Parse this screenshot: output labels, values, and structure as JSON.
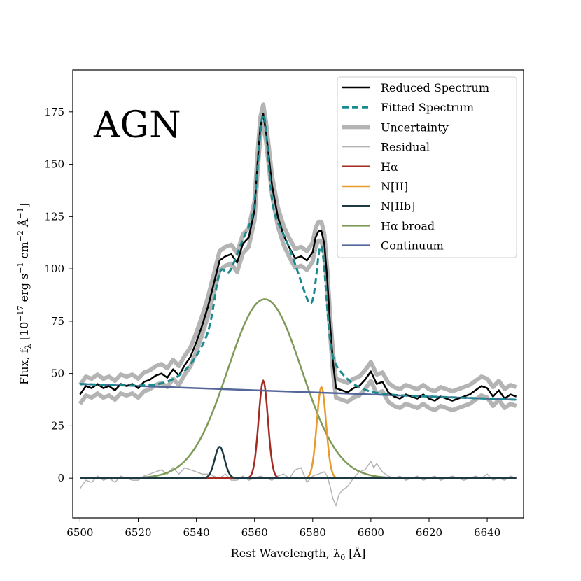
{
  "chart_data": {
    "type": "line",
    "annotation": "AGN",
    "xlabel": "Rest Wavelength, λ",
    "xlabel_sub": "0",
    "xlabel_unit": " [Å]",
    "ylabel": "Flux, f",
    "ylabel_sub": "λ",
    "ylabel_a": " [10",
    "ylabel_exp1": "−17",
    "ylabel_b": " erg s",
    "ylabel_exp2": "−1",
    "ylabel_c": " cm",
    "ylabel_exp3": "−2",
    "ylabel_d": " Å",
    "ylabel_exp4": "−1",
    "ylabel_e": "]",
    "xlim": [
      6497.5,
      6652.5
    ],
    "ylim": [
      -19,
      195
    ],
    "xticks": [
      6500,
      6520,
      6540,
      6560,
      6580,
      6600,
      6620,
      6640
    ],
    "yticks": [
      0,
      25,
      50,
      75,
      100,
      125,
      150,
      175
    ],
    "legend": [
      {
        "label": "Reduced Spectrum",
        "color": "#000000",
        "style": "solid",
        "width": 2.5
      },
      {
        "label": "Fitted Spectrum",
        "color": "#1b8a8e",
        "style": "dashed",
        "width": 3
      },
      {
        "label": "Uncertainty",
        "color": "#b4b4b4",
        "style": "solid",
        "width": 6
      },
      {
        "label": "Residual",
        "color": "#b4b4b4",
        "style": "solid",
        "width": 1.5
      },
      {
        "label": "Hα",
        "color": "#a52a22",
        "style": "solid",
        "width": 2.5
      },
      {
        "label": "N[II]",
        "color": "#e89a2c",
        "style": "solid",
        "width": 2.5
      },
      {
        "label": "N[IIb]",
        "color": "#1d3a44",
        "style": "solid",
        "width": 2.5
      },
      {
        "label": "Hα broad",
        "color": "#7e9a58",
        "style": "solid",
        "width": 2.5
      },
      {
        "label": "Continuum",
        "color": "#55679a",
        "style": "solid",
        "width": 2.5
      }
    ],
    "components": {
      "ha_broad": {
        "amplitude": 85.5,
        "center": 6563.5,
        "sigma": 12.7
      },
      "ha": {
        "amplitude": 46.5,
        "center": 6563,
        "sigma": 1.6
      },
      "n2": {
        "amplitude": 43.5,
        "center": 6583,
        "sigma": 1.6
      },
      "n2b": {
        "amplitude": 15,
        "center": 6548,
        "sigma": 1.7
      },
      "continuum": {
        "start": [
          6500,
          45
        ],
        "end": [
          6650,
          37.5
        ]
      }
    },
    "reduced_spectrum": [
      [
        6500,
        40
      ],
      [
        6502,
        44
      ],
      [
        6504,
        43
      ],
      [
        6506,
        45
      ],
      [
        6508,
        43
      ],
      [
        6510,
        44
      ],
      [
        6512,
        42
      ],
      [
        6514,
        45
      ],
      [
        6516,
        44
      ],
      [
        6518,
        45
      ],
      [
        6520,
        43
      ],
      [
        6522,
        46
      ],
      [
        6524,
        47
      ],
      [
        6526,
        49
      ],
      [
        6528,
        50
      ],
      [
        6530,
        48
      ],
      [
        6532,
        52
      ],
      [
        6534,
        49
      ],
      [
        6536,
        54
      ],
      [
        6538,
        58
      ],
      [
        6540,
        65
      ],
      [
        6542,
        73
      ],
      [
        6544,
        82
      ],
      [
        6546,
        93
      ],
      [
        6548,
        104
      ],
      [
        6550,
        106
      ],
      [
        6552,
        107
      ],
      [
        6554,
        103
      ],
      [
        6556,
        112
      ],
      [
        6558,
        115
      ],
      [
        6560,
        128
      ],
      [
        6561,
        150
      ],
      [
        6562,
        168
      ],
      [
        6563,
        174
      ],
      [
        6564,
        165
      ],
      [
        6566,
        140
      ],
      [
        6568,
        125
      ],
      [
        6570,
        116
      ],
      [
        6572,
        110
      ],
      [
        6574,
        105
      ],
      [
        6576,
        106
      ],
      [
        6578,
        104
      ],
      [
        6580,
        108
      ],
      [
        6581,
        115
      ],
      [
        6582,
        118
      ],
      [
        6583,
        118
      ],
      [
        6584,
        112
      ],
      [
        6585,
        95
      ],
      [
        6586,
        73
      ],
      [
        6587,
        55
      ],
      [
        6588,
        43
      ],
      [
        6590,
        42
      ],
      [
        6592,
        41
      ],
      [
        6594,
        43
      ],
      [
        6596,
        44
      ],
      [
        6598,
        47
      ],
      [
        6600,
        51
      ],
      [
        6602,
        45
      ],
      [
        6604,
        46
      ],
      [
        6606,
        41
      ],
      [
        6608,
        39
      ],
      [
        6610,
        38
      ],
      [
        6612,
        40
      ],
      [
        6614,
        39
      ],
      [
        6616,
        38
      ],
      [
        6618,
        40
      ],
      [
        6620,
        38
      ],
      [
        6622,
        37
      ],
      [
        6624,
        39
      ],
      [
        6626,
        38
      ],
      [
        6628,
        37
      ],
      [
        6630,
        38
      ],
      [
        6632,
        39
      ],
      [
        6634,
        40
      ],
      [
        6636,
        42
      ],
      [
        6638,
        44
      ],
      [
        6640,
        43
      ],
      [
        6642,
        39
      ],
      [
        6644,
        42
      ],
      [
        6646,
        38
      ],
      [
        6648,
        40
      ],
      [
        6650,
        39
      ]
    ],
    "residual": [
      [
        6500,
        -5
      ],
      [
        6502,
        -1
      ],
      [
        6504,
        -2
      ],
      [
        6506,
        1
      ],
      [
        6508,
        -1
      ],
      [
        6510,
        0
      ],
      [
        6512,
        -2
      ],
      [
        6514,
        1
      ],
      [
        6516,
        0
      ],
      [
        6518,
        -1
      ],
      [
        6520,
        -1
      ],
      [
        6522,
        1
      ],
      [
        6524,
        2
      ],
      [
        6526,
        3
      ],
      [
        6528,
        4
      ],
      [
        6530,
        2
      ],
      [
        6532,
        5
      ],
      [
        6534,
        2
      ],
      [
        6536,
        5
      ],
      [
        6538,
        4
      ],
      [
        6540,
        3
      ],
      [
        6542,
        2
      ],
      [
        6544,
        2
      ],
      [
        6546,
        1
      ],
      [
        6548,
        0
      ],
      [
        6550,
        2
      ],
      [
        6552,
        -1
      ],
      [
        6554,
        -1
      ],
      [
        6556,
        1
      ],
      [
        6558,
        -1
      ],
      [
        6560,
        0
      ],
      [
        6562,
        1
      ],
      [
        6564,
        0
      ],
      [
        6566,
        -1
      ],
      [
        6568,
        1
      ],
      [
        6570,
        2
      ],
      [
        6572,
        0
      ],
      [
        6574,
        4
      ],
      [
        6576,
        5
      ],
      [
        6578,
        -2
      ],
      [
        6580,
        1
      ],
      [
        6582,
        2
      ],
      [
        6584,
        3
      ],
      [
        6585,
        1
      ],
      [
        6586,
        -4
      ],
      [
        6587,
        -10
      ],
      [
        6588,
        -13
      ],
      [
        6589,
        -8
      ],
      [
        6590,
        -6
      ],
      [
        6592,
        -4
      ],
      [
        6594,
        0
      ],
      [
        6596,
        3
      ],
      [
        6598,
        4
      ],
      [
        6600,
        8
      ],
      [
        6601,
        5
      ],
      [
        6602,
        7
      ],
      [
        6604,
        3
      ],
      [
        6606,
        1
      ],
      [
        6608,
        0
      ],
      [
        6610,
        1
      ],
      [
        6612,
        -1
      ],
      [
        6614,
        0
      ],
      [
        6616,
        1
      ],
      [
        6618,
        -1
      ],
      [
        6620,
        0
      ],
      [
        6622,
        1
      ],
      [
        6624,
        -1
      ],
      [
        6626,
        0
      ],
      [
        6628,
        1
      ],
      [
        6630,
        0
      ],
      [
        6632,
        -1
      ],
      [
        6634,
        0
      ],
      [
        6636,
        1
      ],
      [
        6638,
        0
      ],
      [
        6640,
        2
      ],
      [
        6642,
        -1
      ],
      [
        6644,
        0
      ],
      [
        6646,
        -1
      ],
      [
        6648,
        1
      ],
      [
        6650,
        0
      ]
    ]
  }
}
